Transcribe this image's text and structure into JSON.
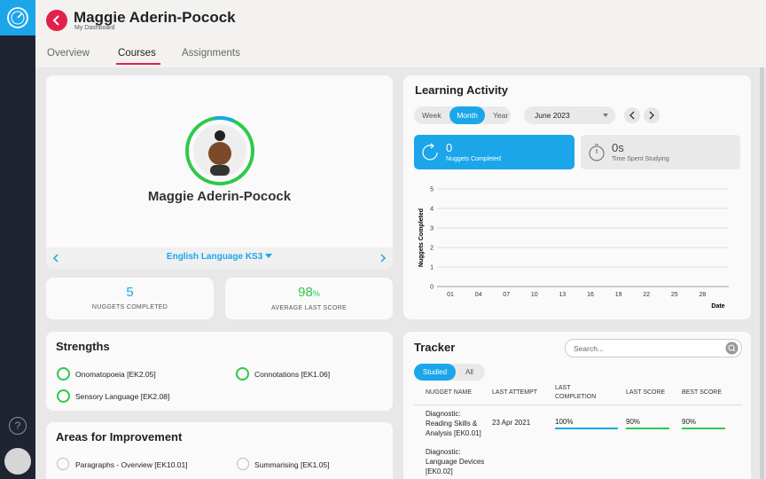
{
  "header": {
    "title": "Maggie Aderin-Pocock",
    "subtitle": "My Dashboard"
  },
  "tabs": [
    "Overview",
    "Courses",
    "Assignments"
  ],
  "profile": {
    "name": "Maggie Aderin-Pocock",
    "course": "English Language KS3"
  },
  "stats": [
    {
      "value": "5",
      "label": "NUGGETS COMPLETED"
    },
    {
      "value": "98",
      "unit": "%",
      "label": "AVERAGE LAST SCORE"
    }
  ],
  "learning_activity": {
    "title": "Learning Activity",
    "periods": [
      "Week",
      "Month",
      "Year"
    ],
    "month": "June 2023",
    "cards": [
      {
        "value": "0",
        "label": "Nuggets Completed"
      },
      {
        "value": "0s",
        "label": "Time Spent Studying"
      }
    ],
    "chart": {
      "ylabel": "Nuggets Completed",
      "xlabel": "Date",
      "yticks": [
        0,
        1,
        2,
        3,
        4,
        5
      ],
      "xticks": [
        "01",
        "04",
        "07",
        "10",
        "13",
        "16",
        "19",
        "22",
        "25",
        "28"
      ]
    }
  },
  "strengths": {
    "title": "Strengths",
    "items": [
      "Onomatopoeia [EK2.05]",
      "Connotations [EK1.06]",
      "Sensory Language [EK2.08]"
    ]
  },
  "improvement": {
    "title": "Areas for Improvement",
    "items": [
      "Paragraphs - Overview [EK10.01]",
      "Summarising [EK1.05]"
    ]
  },
  "tracker": {
    "title": "Tracker",
    "search_placeholder": "Search...",
    "filters": [
      "Studied",
      "All"
    ],
    "columns": [
      "NUGGET NAME",
      "LAST ATTEMPT",
      "LAST COMPLETION",
      "LAST SCORE",
      "BEST SCORE"
    ],
    "rows": [
      [
        "Diagnostic: Reading Skills & Analysis [EK0.01]",
        "23 Apr 2021",
        "100%",
        "90%",
        "90%"
      ],
      [
        "Diagnostic: Language Devices [EK0.02]"
      ]
    ]
  },
  "help": "?"
}
